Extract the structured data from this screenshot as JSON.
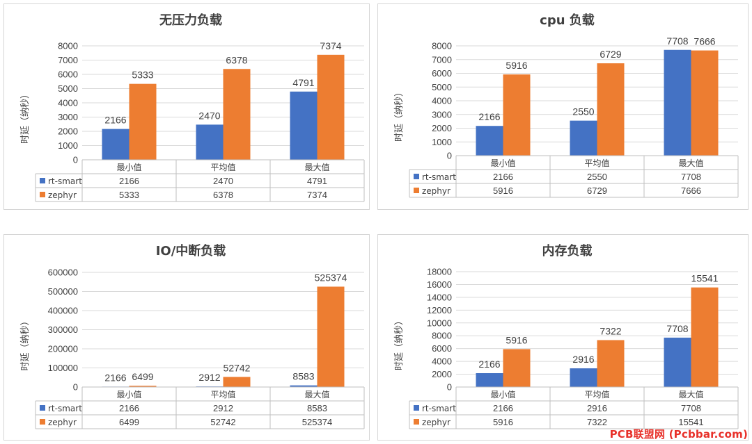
{
  "colors": {
    "rt-smart": "#4472c4",
    "zephyr": "#ed7d31",
    "grid": "#d9d9d9",
    "text": "#404040"
  },
  "watermark": "PCB联盟网 (Pcbbar.com)",
  "chart_data": [
    {
      "type": "bar",
      "title": "无压力负载",
      "ylabel": "时延（纳秒）",
      "ylim": [
        0,
        8000
      ],
      "yticks": [
        "0",
        "1000",
        "2000",
        "3000",
        "4000",
        "5000",
        "6000",
        "7000",
        "8000"
      ],
      "categories": [
        "最小值",
        "平均值",
        "最大值"
      ],
      "series": [
        {
          "name": "rt-smart",
          "values": [
            2166,
            2470,
            4791
          ],
          "labels": [
            "2166",
            "2470",
            "4791"
          ]
        },
        {
          "name": "zephyr",
          "values": [
            5333,
            6378,
            7374
          ],
          "labels": [
            "5333",
            "6378",
            "7374"
          ]
        }
      ],
      "legend": "table-below",
      "grid": true
    },
    {
      "type": "bar",
      "title": "cpu 负载",
      "ylabel": "时延（纳秒）",
      "ylim": [
        0,
        8000
      ],
      "yticks": [
        "0",
        "1000",
        "2000",
        "3000",
        "4000",
        "5000",
        "6000",
        "7000",
        "8000"
      ],
      "categories": [
        "最小值",
        "平均值",
        "最大值"
      ],
      "series": [
        {
          "name": "rt-smart",
          "values": [
            2166,
            2550,
            7708
          ],
          "labels": [
            "2166",
            "2550",
            "7708"
          ]
        },
        {
          "name": "zephyr",
          "values": [
            5916,
            6729,
            7666
          ],
          "labels": [
            "5916",
            "6729",
            "7666"
          ]
        }
      ],
      "legend": "table-below",
      "grid": true
    },
    {
      "type": "bar",
      "title": "IO/中断负载",
      "ylabel": "时延（纳秒）",
      "ylim": [
        0,
        600000
      ],
      "yticks": [
        "0",
        "100000",
        "200000",
        "300000",
        "400000",
        "500000",
        "600000"
      ],
      "categories": [
        "最小值",
        "平均值",
        "最大值"
      ],
      "series": [
        {
          "name": "rt-smart",
          "values": [
            2166,
            2912,
            8583
          ],
          "labels": [
            "2166",
            "2912",
            "8583"
          ]
        },
        {
          "name": "zephyr",
          "values": [
            6499,
            52742,
            525374
          ],
          "labels": [
            "6499",
            "52742",
            "525374"
          ]
        }
      ],
      "legend": "table-below",
      "grid": true
    },
    {
      "type": "bar",
      "title": "内存负载",
      "ylabel": "时延（纳秒）",
      "ylim": [
        0,
        18000
      ],
      "yticks": [
        "0",
        "2000",
        "4000",
        "6000",
        "8000",
        "10000",
        "12000",
        "14000",
        "16000",
        "18000"
      ],
      "categories": [
        "最小值",
        "平均值",
        "最大值"
      ],
      "series": [
        {
          "name": "rt-smart",
          "values": [
            2166,
            2916,
            7708
          ],
          "labels": [
            "2166",
            "2916",
            "7708"
          ]
        },
        {
          "name": "zephyr",
          "values": [
            5916,
            7322,
            15541
          ],
          "labels": [
            "5916",
            "7322",
            "15541"
          ]
        }
      ],
      "legend": "table-below",
      "grid": true
    }
  ]
}
